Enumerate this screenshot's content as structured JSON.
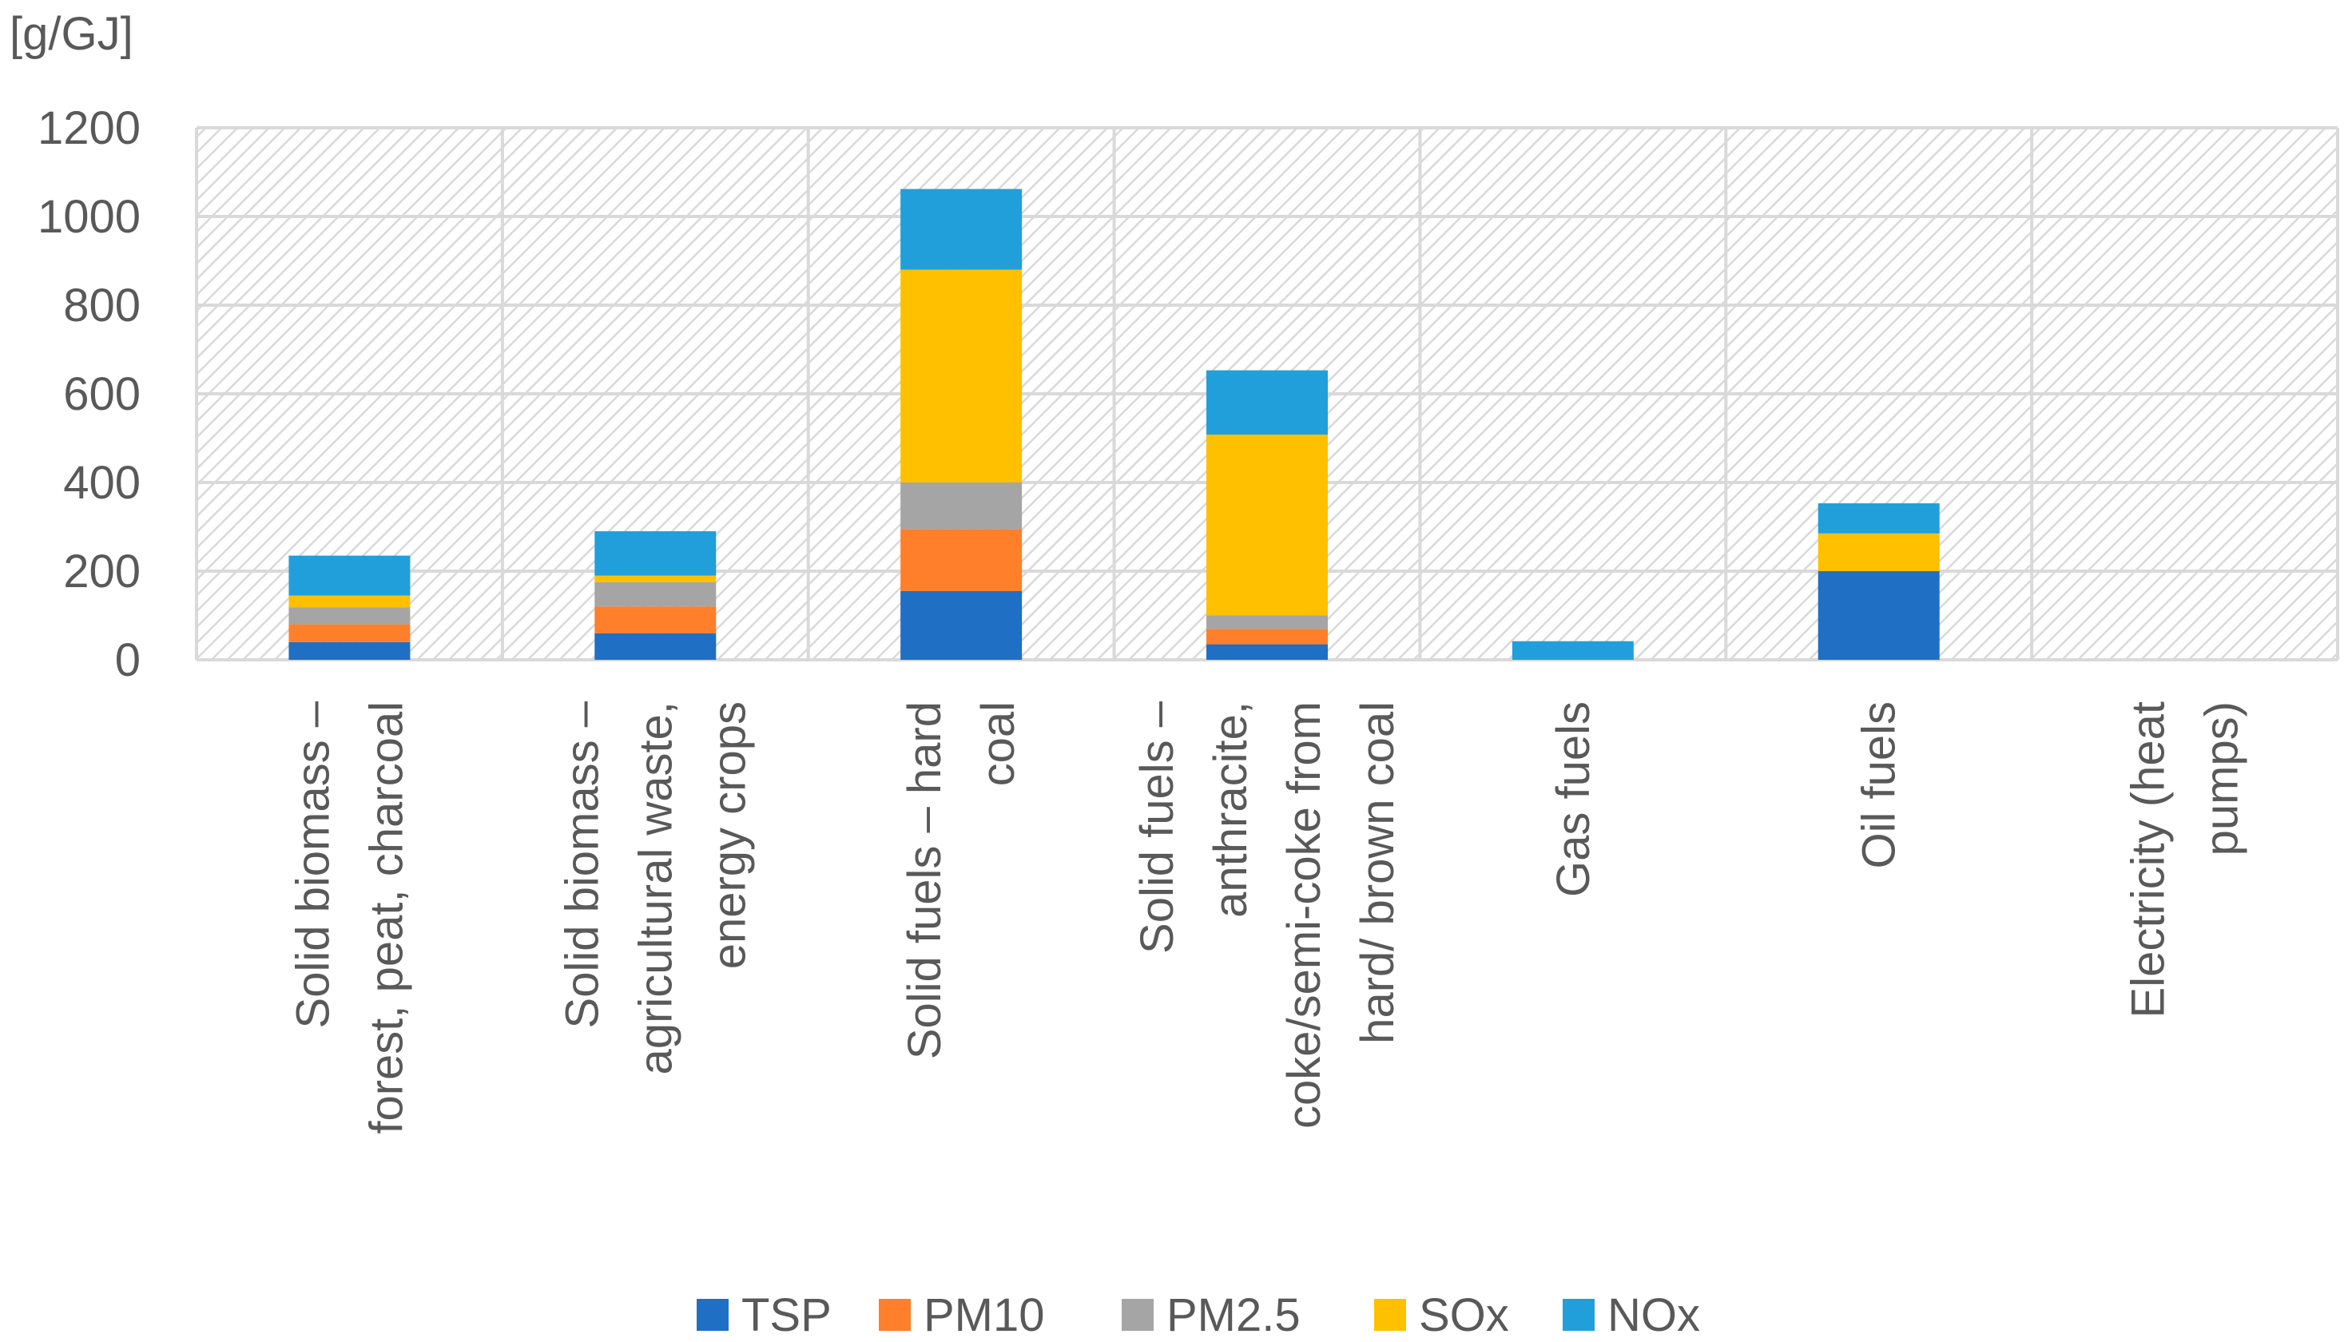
{
  "chart_data": {
    "type": "bar",
    "stacked": true,
    "title": "",
    "ylabel": "[g/GJ]",
    "xlabel": "",
    "ylim": [
      0,
      1200
    ],
    "yticks": [
      0,
      200,
      400,
      600,
      800,
      1000,
      1200
    ],
    "grid": true,
    "legend_position": "bottom",
    "categories": [
      [
        "Solid biomass –",
        "forest, peat, charcoal"
      ],
      [
        "Solid biomass –",
        "agricultural waste,",
        "energy crops"
      ],
      [
        "Solid fuels – hard",
        "coal"
      ],
      [
        "Solid fuels –",
        "anthracite,",
        "coke/semi-coke from",
        "hard/ brown coal"
      ],
      [
        "Gas fuels"
      ],
      [
        "Oil fuels"
      ],
      [
        "Electricity (heat",
        "pumps)"
      ]
    ],
    "series": [
      {
        "name": "TSP",
        "color": "#1F6FC5",
        "values": [
          40,
          60,
          155,
          35,
          0,
          200,
          0
        ]
      },
      {
        "name": "PM10",
        "color": "#FF7F2A",
        "values": [
          40,
          60,
          140,
          35,
          0,
          0,
          0
        ]
      },
      {
        "name": "PM2.5",
        "color": "#A5A5A5",
        "values": [
          38,
          55,
          105,
          30,
          0,
          0,
          0
        ]
      },
      {
        "name": "SOx",
        "color": "#FFC000",
        "values": [
          27,
          15,
          480,
          408,
          0,
          85,
          0
        ]
      },
      {
        "name": "NOx",
        "color": "#219FDB",
        "values": [
          90,
          100,
          182,
          145,
          42,
          68,
          0
        ]
      }
    ]
  }
}
